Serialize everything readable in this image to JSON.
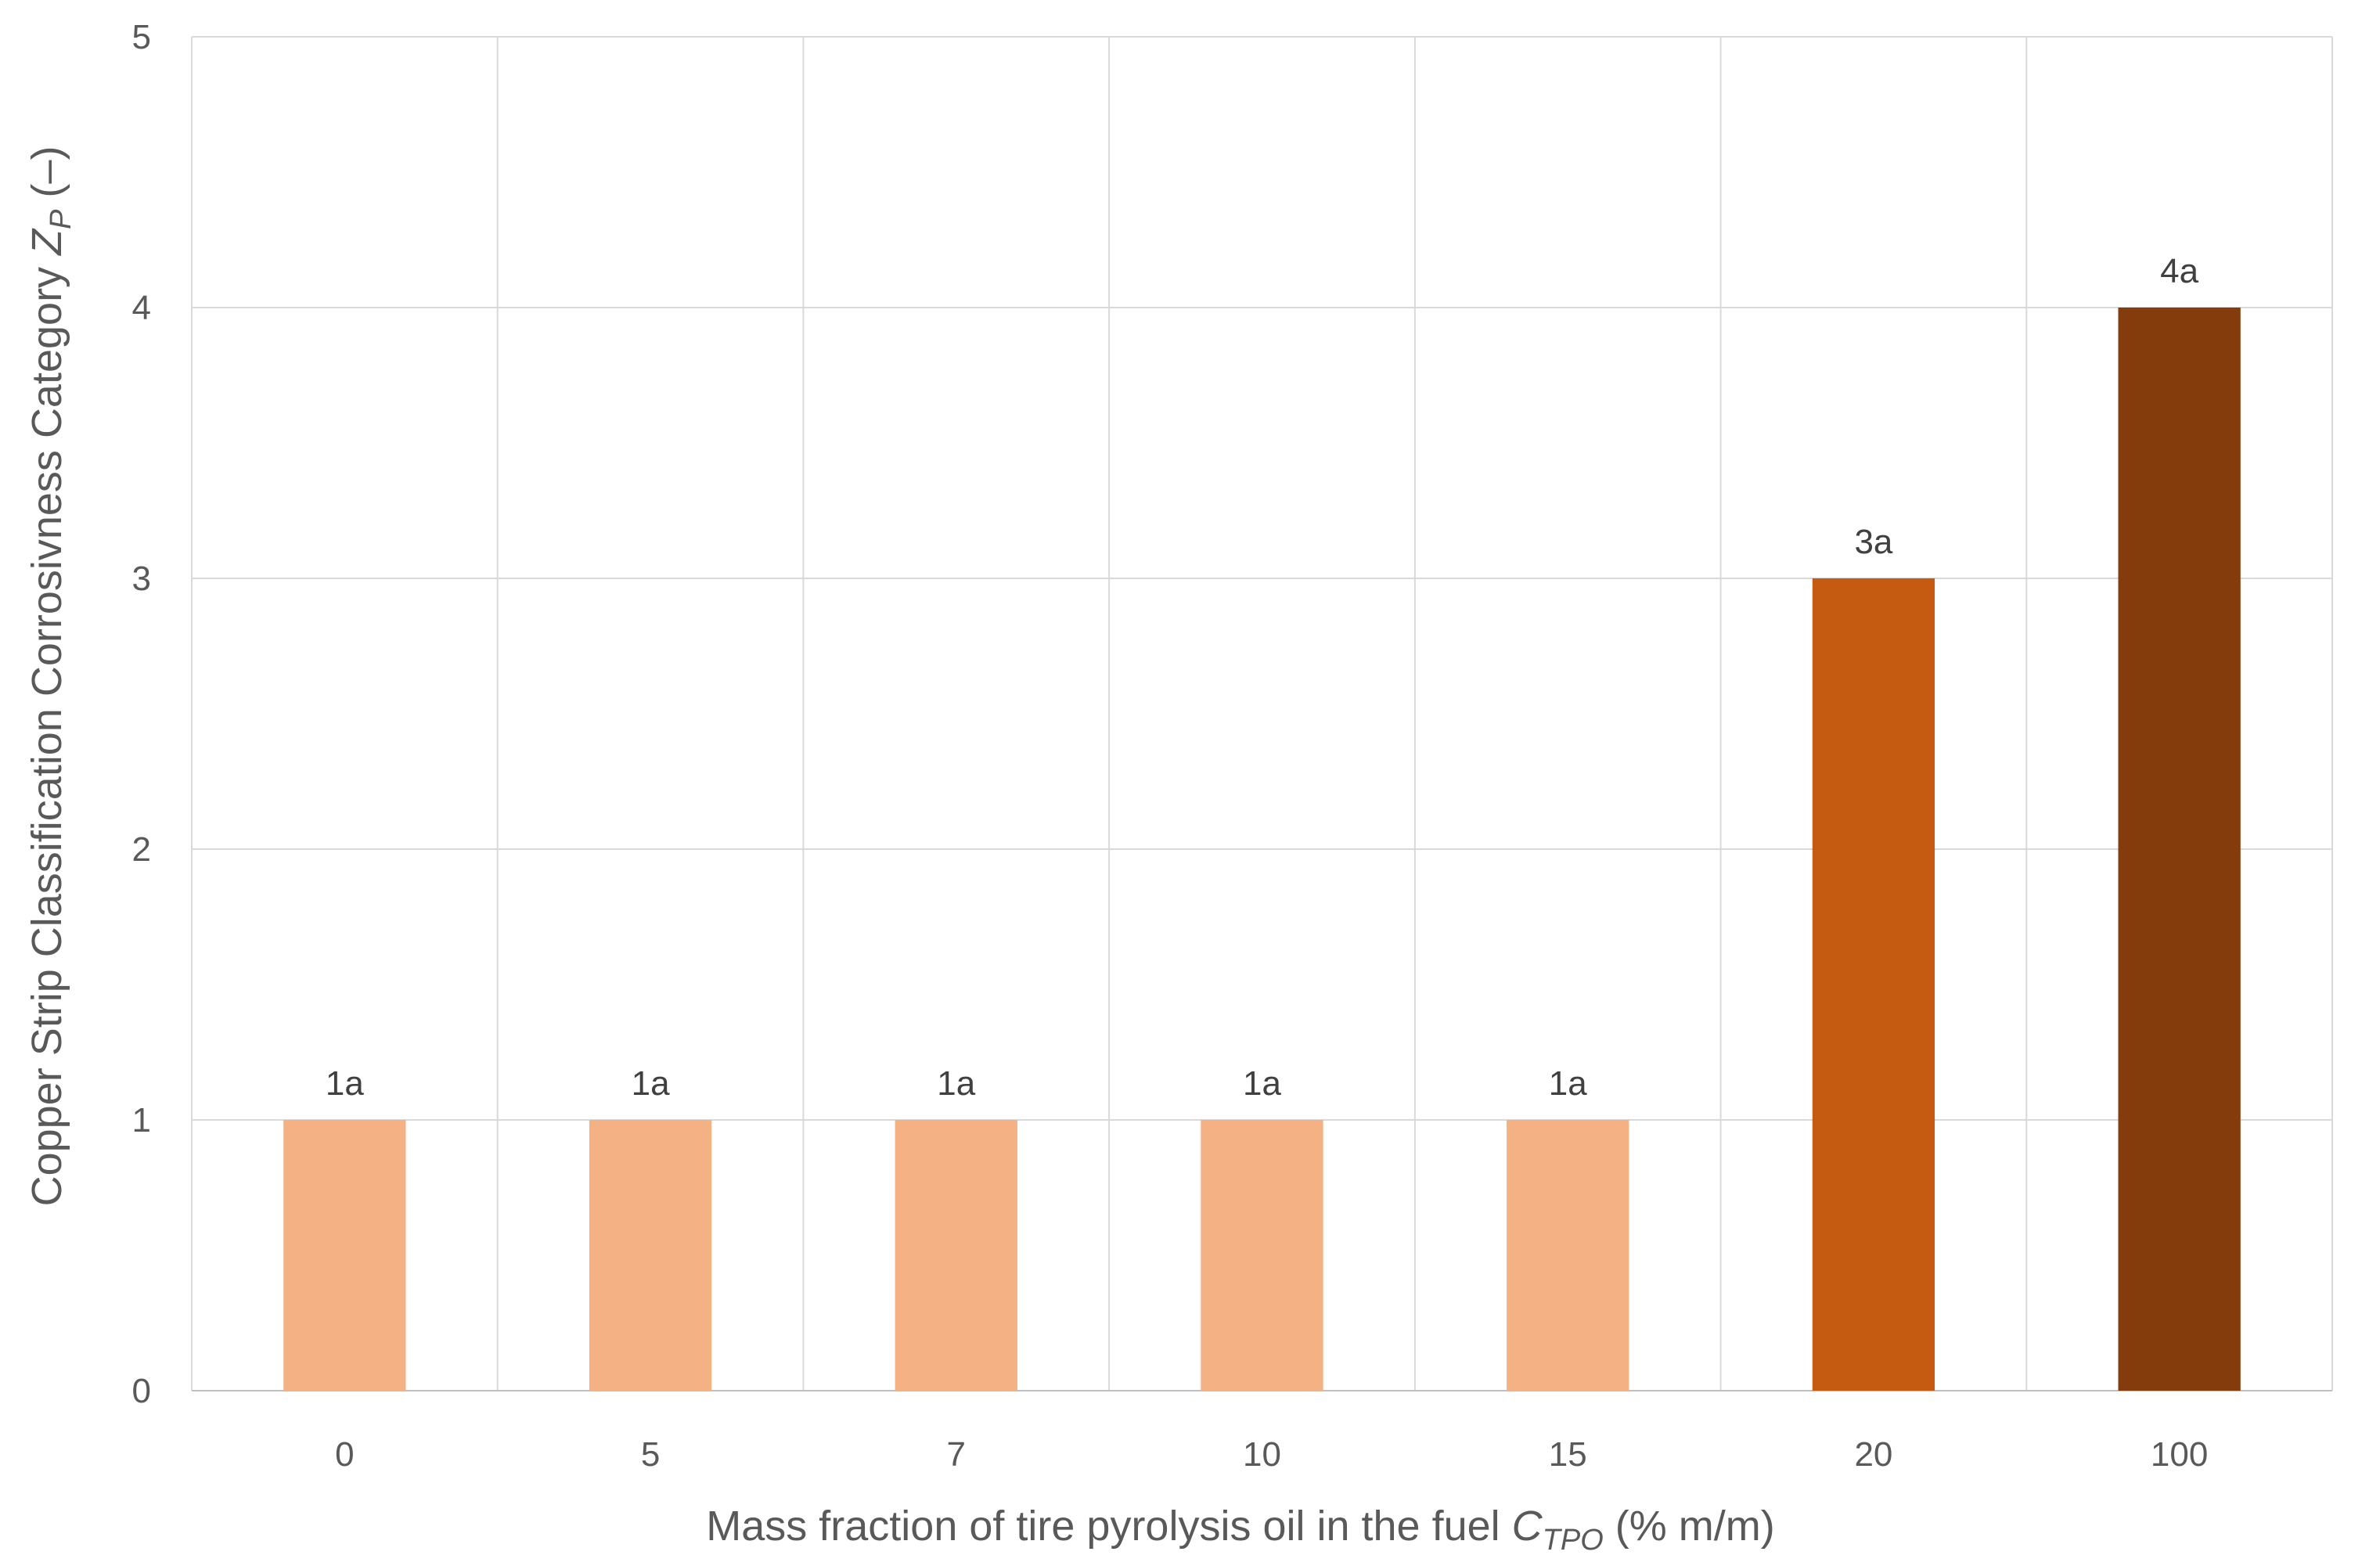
{
  "chart_data": {
    "type": "bar",
    "categories": [
      "0",
      "5",
      "7",
      "10",
      "15",
      "20",
      "100"
    ],
    "values": [
      1,
      1,
      1,
      1,
      1,
      3,
      4
    ],
    "data_labels": [
      "1a",
      "1a",
      "1a",
      "1a",
      "1a",
      "3a",
      "4a"
    ],
    "bar_colors": [
      "#F4B183",
      "#F4B183",
      "#F4B183",
      "#F4B183",
      "#F4B183",
      "#C55A11",
      "#843C0C"
    ],
    "title": "",
    "xlabel": {
      "text": "Mass fraction of tire pyrolysis oil in the fuel ",
      "var": "C",
      "sub": "TPO",
      "unit": " (% m/m)"
    },
    "ylabel": {
      "text": "Copper Strip Classification Corrosivness Category ",
      "var": "Z",
      "sub": "P",
      "unit": " (–)"
    },
    "ylim": [
      0,
      5
    ],
    "yticks": [
      "0",
      "1",
      "2",
      "3",
      "4",
      "5"
    ],
    "grid": true,
    "legend": "none"
  }
}
